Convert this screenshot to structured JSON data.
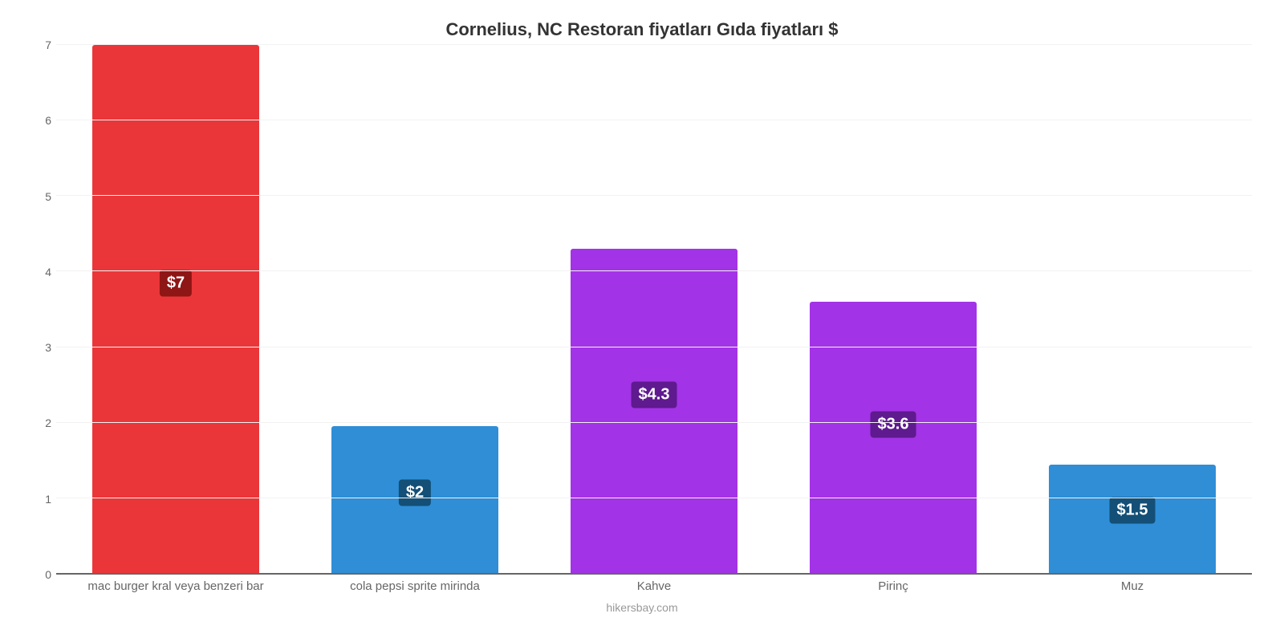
{
  "chart": {
    "type": "bar",
    "title": "Cornelius, NC Restoran fiyatları Gıda fiyatları $",
    "title_color": "#333333",
    "title_fontsize": 22,
    "caption": "hikersbay.com",
    "caption_color": "#999999",
    "caption_fontsize": 14,
    "background_color": "#ffffff",
    "grid_color": "#f2f2f2",
    "axis_color": "#666666",
    "tick_fontsize": 14,
    "xlabel_fontsize": 15,
    "ymin": 0,
    "ymax": 7,
    "ytick_step": 1,
    "bar_width_percent": 70,
    "value_label_fontsize": 20,
    "series": [
      {
        "category": "mac burger kral veya benzeri bar",
        "value": 7.0,
        "value_label": "$7",
        "bar_color": "#eb3639",
        "badge_color": "#8e1615"
      },
      {
        "category": "cola pepsi sprite mirinda",
        "value": 1.95,
        "value_label": "$2",
        "bar_color": "#2f8ed6",
        "badge_color": "#134f76"
      },
      {
        "category": "Kahve",
        "value": 4.3,
        "value_label": "$4.3",
        "bar_color": "#a333e6",
        "badge_color": "#5e1a8e"
      },
      {
        "category": "Pirinç",
        "value": 3.6,
        "value_label": "$3.6",
        "bar_color": "#a333e6",
        "badge_color": "#5e1a8e"
      },
      {
        "category": "Muz",
        "value": 1.45,
        "value_label": "$1.5",
        "bar_color": "#2f8ed6",
        "badge_color": "#134f76"
      }
    ]
  }
}
